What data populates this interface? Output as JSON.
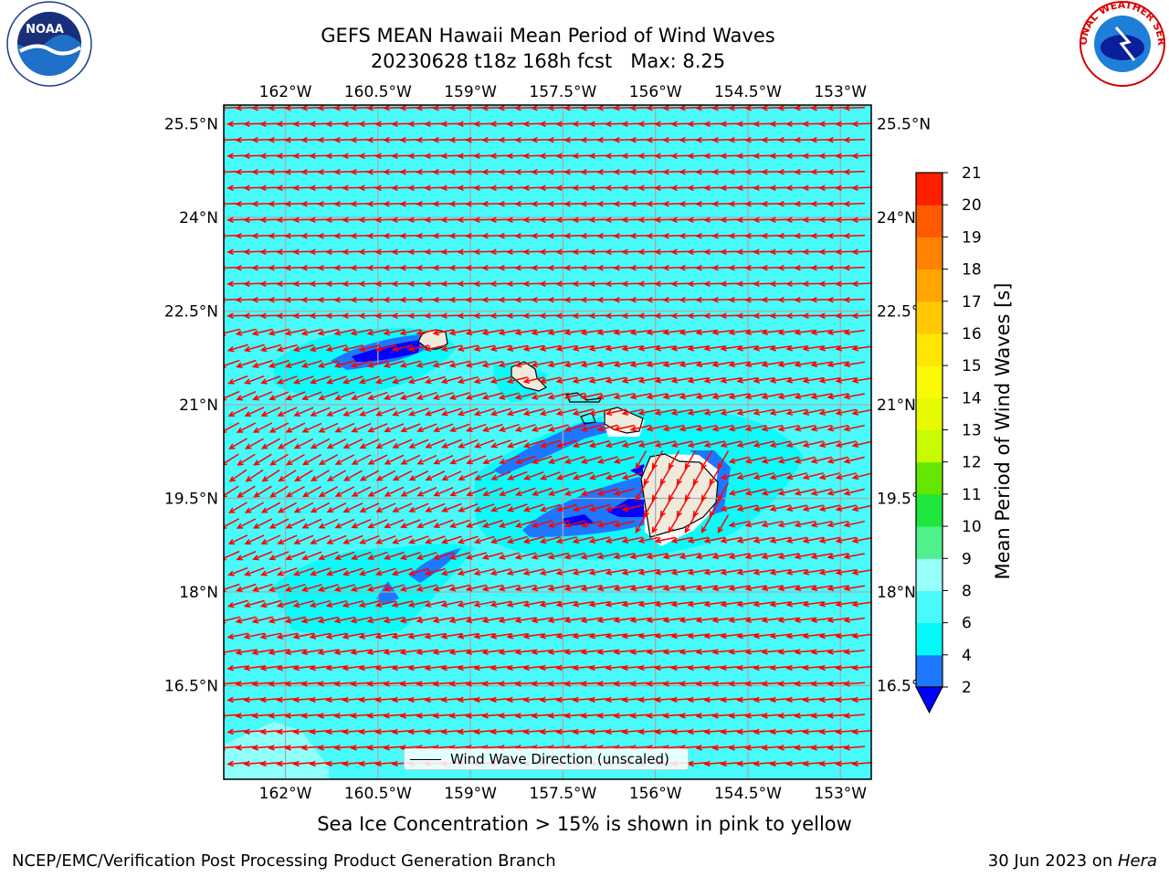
{
  "title": {
    "line1": "GEFS MEAN Hawaii Mean Period of Wind Waves",
    "line2": "20230628 t18z 168h fcst   Max: 8.25"
  },
  "map": {
    "lon_range": [
      -163.0,
      -152.5
    ],
    "lat_range": [
      15.0,
      25.8
    ],
    "lon_ticks": [
      -162,
      -160.5,
      -159,
      -157.5,
      -156,
      -154.5,
      -153
    ],
    "lon_tick_labels": [
      "162°W",
      "160.5°W",
      "159°W",
      "157.5°W",
      "156°W",
      "154.5°W",
      "153°W"
    ],
    "lat_ticks": [
      25.5,
      24,
      22.5,
      21,
      19.5,
      18,
      16.5
    ],
    "lat_tick_labels": [
      "25.5°N",
      "24°N",
      "22.5°N",
      "21°N",
      "19.5°N",
      "18°N",
      "16.5°N"
    ],
    "background_color": "#49fafa",
    "grid": true,
    "arrow_color": "#ff0000",
    "land_color": "#efebdc",
    "legend_label": "Wind Wave Direction (unscaled)",
    "islands": [
      "Kauai",
      "Oahu",
      "Molokai",
      "Maui",
      "Hawaii"
    ]
  },
  "colorbar": {
    "label": "Mean Period of Wind Waves [s]",
    "ticks": [
      "2",
      "4",
      "6",
      "8",
      "9",
      "10",
      "11",
      "12",
      "13",
      "14",
      "15",
      "16",
      "17",
      "18",
      "19",
      "20",
      "21"
    ],
    "colors": [
      "#1e78ff",
      "#00fafa",
      "#49fafa",
      "#96fffa",
      "#50f08c",
      "#1ee63c",
      "#64e600",
      "#c8fa00",
      "#e6fa00",
      "#fafa00",
      "#ffe600",
      "#ffc800",
      "#ffa500",
      "#ff8200",
      "#ff5a00",
      "#ff1e00"
    ],
    "under_color": "#0000ff"
  },
  "footer": {
    "note": "Sea Ice Concentration > 15% is shown in pink to yellow",
    "credit": "NCEP/EMC/Verification Post Processing Product Generation Branch",
    "date": "30 Jun 2023 on ",
    "machine": "Hera"
  },
  "logos": {
    "noaa": "NOAA",
    "nws": "NATIONAL WEATHER SERVICE"
  }
}
